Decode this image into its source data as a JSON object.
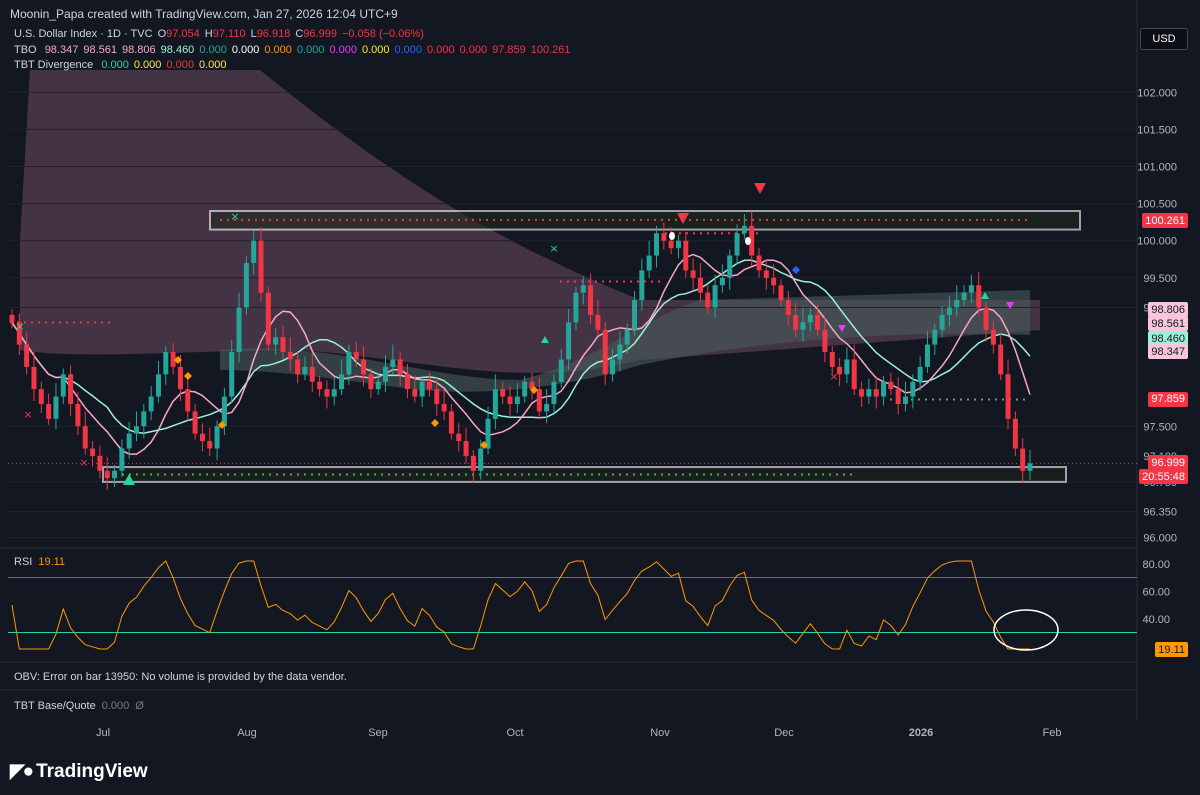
{
  "header": {
    "attribution": "Moonin_Papa created with TradingView.com, Jan 27, 2026 12:04 UTC+9"
  },
  "symbol_line": {
    "name": "U.S. Dollar Index · 1D · TVC",
    "open_label": "O",
    "open": "97.054",
    "high_label": "H",
    "high": "97.110",
    "low_label": "L",
    "low": "96.918",
    "close_label": "C",
    "close": "96.999",
    "change": "−0.058 (−0.06%)"
  },
  "tbo_line": {
    "name": "TBO",
    "values": [
      {
        "v": "98.347",
        "color": "#f7a9c4"
      },
      {
        "v": "98.561",
        "color": "#f7a9c4"
      },
      {
        "v": "98.806",
        "color": "#f7a9c4"
      },
      {
        "v": "98.460",
        "color": "#9cf2d6"
      },
      {
        "v": "0.000",
        "color": "#26a69a"
      },
      {
        "v": "0.000",
        "color": "#ffffff"
      },
      {
        "v": "0.000",
        "color": "#ff9800"
      },
      {
        "v": "0.000",
        "color": "#26a69a"
      },
      {
        "v": "0.000",
        "color": "#e040fb"
      },
      {
        "v": "0.000",
        "color": "#ffeb3b"
      },
      {
        "v": "0.000",
        "color": "#2962ff"
      },
      {
        "v": "0.000",
        "color": "#f23645"
      },
      {
        "v": "0.000",
        "color": "#f23645"
      },
      {
        "v": "97.859",
        "color": "#f23645"
      },
      {
        "v": "100.261",
        "color": "#f23645"
      }
    ]
  },
  "tbt_div_line": {
    "name": "TBT Divergence",
    "values": [
      {
        "v": "0.000",
        "color": "#26d6a0"
      },
      {
        "v": "0.000",
        "color": "#ffeb3b"
      },
      {
        "v": "0.000",
        "color": "#f23645"
      },
      {
        "v": "0.000",
        "color": "#ffeb3b"
      }
    ]
  },
  "currency_button": "USD",
  "price_axis": {
    "ticks": [
      "102.000",
      "101.500",
      "101.000",
      "100.500",
      "100.000",
      "99.500",
      "99.100",
      "97.500",
      "97.100",
      "96.750",
      "96.350",
      "96.000"
    ]
  },
  "price_boxes": [
    {
      "label": "100.261",
      "bg": "#f23645",
      "fg": "#ffffff"
    },
    {
      "label": "98.806",
      "bg": "#f8c6d8",
      "fg": "#131722"
    },
    {
      "label": "98.561",
      "bg": "#f8c6d8",
      "fg": "#131722"
    },
    {
      "label": "98.460",
      "bg": "#9cf2d6",
      "fg": "#131722"
    },
    {
      "label": "98.347",
      "bg": "#f8c6d8",
      "fg": "#131722"
    },
    {
      "label": "97.859",
      "bg": "#f23645",
      "fg": "#ffffff"
    },
    {
      "label": "96.999",
      "bg": "#f23645",
      "fg": "#ffffff"
    },
    {
      "label": "20:55:48",
      "bg": "#f23645",
      "fg": "#ffffff"
    }
  ],
  "rsi": {
    "name": "RSI",
    "value": "19.11",
    "axis_ticks": [
      "80.00",
      "60.00",
      "40.00"
    ],
    "value_box": "19.11"
  },
  "obv_text": "OBV: Error on bar 13950: No volume is provided by the data vendor.",
  "tbt_base_quote": {
    "name": "TBT Base/Quote",
    "value": "0.000",
    "symbol": "Ø"
  },
  "time_axis": [
    "Jul",
    "Aug",
    "Sep",
    "Oct",
    "Nov",
    "Dec",
    "2026",
    "Feb"
  ],
  "brand": "TradingView",
  "colors": {
    "bg": "#131722",
    "up": "#26a69a",
    "down": "#f23645",
    "rsi_line": "#ff9800",
    "rsi_upper": "#f23645",
    "rsi_lower": "#26d6a0",
    "ma_pink": "#f7a9c4",
    "ma_teal": "#9cf2d6"
  },
  "chart_data": {
    "type": "candlestick",
    "title": "U.S. Dollar Index · 1D · TVC",
    "y_range": [
      95.9,
      102.3
    ],
    "resistance_zone": [
      100.15,
      100.4
    ],
    "support_zone": [
      96.75,
      96.95
    ],
    "closes": [
      98.9,
      98.6,
      98.3,
      98.0,
      97.8,
      97.6,
      97.9,
      98.2,
      97.8,
      97.5,
      97.2,
      97.1,
      96.9,
      96.8,
      96.9,
      97.2,
      97.4,
      97.5,
      97.7,
      97.9,
      98.2,
      98.5,
      98.3,
      98.0,
      97.7,
      97.4,
      97.3,
      97.2,
      97.5,
      97.9,
      98.5,
      99.1,
      99.7,
      100.0,
      99.3,
      98.6,
      98.7,
      98.5,
      98.4,
      98.2,
      98.3,
      98.1,
      98.0,
      97.9,
      98.0,
      98.2,
      98.5,
      98.4,
      98.2,
      98.0,
      98.1,
      98.3,
      98.4,
      98.2,
      98.0,
      97.9,
      98.1,
      98.0,
      97.8,
      97.7,
      97.4,
      97.3,
      97.1,
      96.9,
      97.2,
      97.6,
      98.0,
      97.9,
      97.8,
      97.9,
      98.1,
      98.0,
      97.7,
      97.8,
      98.1,
      98.4,
      98.9,
      99.3,
      99.4,
      99.0,
      98.8,
      98.2,
      98.4,
      98.6,
      98.8,
      99.2,
      99.6,
      99.8,
      100.1,
      100.0,
      99.9,
      100.0,
      99.6,
      99.5,
      99.3,
      99.1,
      99.4,
      99.5,
      99.8,
      100.1,
      100.2,
      99.8,
      99.6,
      99.5,
      99.4,
      99.2,
      99.0,
      98.8,
      98.9,
      99.0,
      98.8,
      98.5,
      98.3,
      98.2,
      98.4,
      98.0,
      97.9,
      98.0,
      97.9,
      98.1,
      98.0,
      97.8,
      97.9,
      98.1,
      98.3,
      98.6,
      98.8,
      99.0,
      99.1,
      99.2,
      99.3,
      99.4,
      99.1,
      98.8,
      98.6,
      98.2,
      97.6,
      97.2,
      96.9,
      97.0
    ]
  }
}
